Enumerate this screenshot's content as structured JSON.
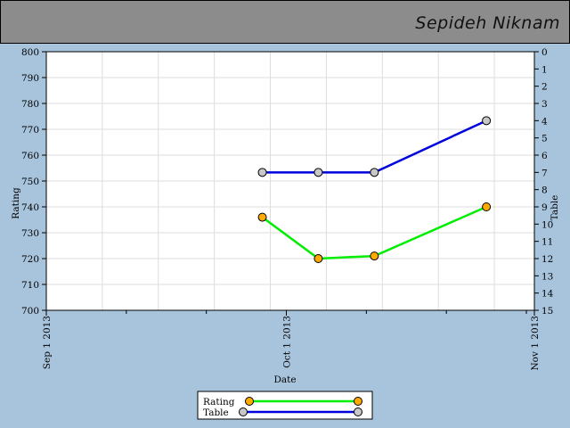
{
  "header": {
    "title": "Sepideh Niknam"
  },
  "chart_data": {
    "type": "line",
    "xlabel": "Date",
    "ylabel": "Rating",
    "y2label": "Table",
    "x_ticks": [
      "Sep 1 2013",
      "Oct 1 2013",
      "Nov 1 2013"
    ],
    "x_range": [
      "2013-09-01",
      "2013-11-01"
    ],
    "ylim": [
      700,
      800
    ],
    "y_ticks": [
      700,
      710,
      720,
      730,
      740,
      750,
      760,
      770,
      780,
      790,
      800
    ],
    "y2lim": [
      15,
      0
    ],
    "y2_ticks": [
      0,
      1,
      2,
      3,
      4,
      5,
      6,
      7,
      8,
      9,
      10,
      11,
      12,
      13,
      14,
      15
    ],
    "grid": true,
    "legend_position": "bottom-center",
    "series": [
      {
        "name": "Rating",
        "axis": "left",
        "color": "#00ee00",
        "marker_color": "#ffaa00",
        "x": [
          "2013-09-28",
          "2013-10-05",
          "2013-10-12",
          "2013-10-26"
        ],
        "values": [
          736,
          720,
          721,
          740
        ]
      },
      {
        "name": "Table",
        "axis": "right",
        "color": "#0000dd",
        "marker_color": "#c8c8c8",
        "x": [
          "2013-09-28",
          "2013-10-05",
          "2013-10-12",
          "2013-10-26"
        ],
        "values": [
          7,
          7,
          7,
          4
        ]
      }
    ]
  }
}
